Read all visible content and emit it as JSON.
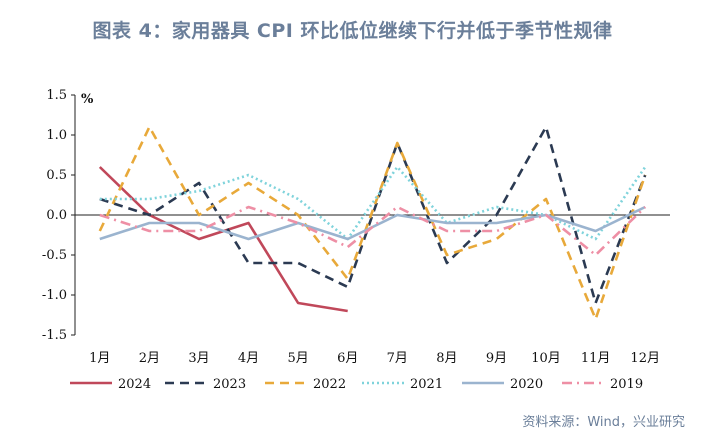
{
  "title": "图表 4：家用器具 CPI 环比低位继续下行并低于季节性规律",
  "source": "资料来源：Wind，兴业研究",
  "chart_data": {
    "type": "line",
    "unit": "%",
    "categories": [
      "1月",
      "2月",
      "3月",
      "4月",
      "5月",
      "6月",
      "7月",
      "8月",
      "9月",
      "10月",
      "11月",
      "12月"
    ],
    "ylim": [
      -1.5,
      1.5
    ],
    "yticks": [
      "1.5",
      "1.0",
      "0.5",
      "0.0",
      "-0.5",
      "-1.0",
      "-1.5"
    ],
    "ytick_values": [
      1.5,
      1.0,
      0.5,
      0.0,
      -0.5,
      -1.0,
      -1.5
    ],
    "legend_position": "bottom",
    "series": [
      {
        "name": "2024",
        "color": "#c0485a",
        "dash": "solid",
        "values": [
          0.6,
          0.0,
          -0.3,
          -0.1,
          -1.1,
          -1.2,
          null,
          null,
          null,
          null,
          null,
          null
        ]
      },
      {
        "name": "2023",
        "color": "#2b3a52",
        "dash": "dash",
        "values": [
          0.2,
          0.0,
          0.4,
          -0.6,
          -0.6,
          -0.9,
          0.9,
          -0.6,
          0.0,
          1.1,
          -1.1,
          0.5
        ]
      },
      {
        "name": "2022",
        "color": "#e8a93a",
        "dash": "dash",
        "values": [
          -0.2,
          1.1,
          0.0,
          0.4,
          0.0,
          -0.8,
          0.9,
          -0.5,
          -0.3,
          0.2,
          -1.3,
          0.5
        ]
      },
      {
        "name": "2021",
        "color": "#7fd3db",
        "dash": "dot",
        "values": [
          0.2,
          0.2,
          0.3,
          0.5,
          0.2,
          -0.3,
          0.6,
          -0.1,
          0.1,
          0.0,
          -0.3,
          0.6
        ]
      },
      {
        "name": "2020",
        "color": "#9bb4cf",
        "dash": "solid",
        "values": [
          -0.3,
          -0.1,
          -0.1,
          -0.3,
          -0.1,
          -0.3,
          0.0,
          -0.1,
          -0.1,
          0.0,
          -0.2,
          0.1
        ]
      },
      {
        "name": "2019",
        "color": "#ee8fa5",
        "dash": "dashdot",
        "values": [
          0.0,
          -0.2,
          -0.2,
          0.1,
          -0.1,
          -0.4,
          0.1,
          -0.2,
          -0.2,
          0.0,
          -0.5,
          0.1
        ]
      }
    ]
  }
}
